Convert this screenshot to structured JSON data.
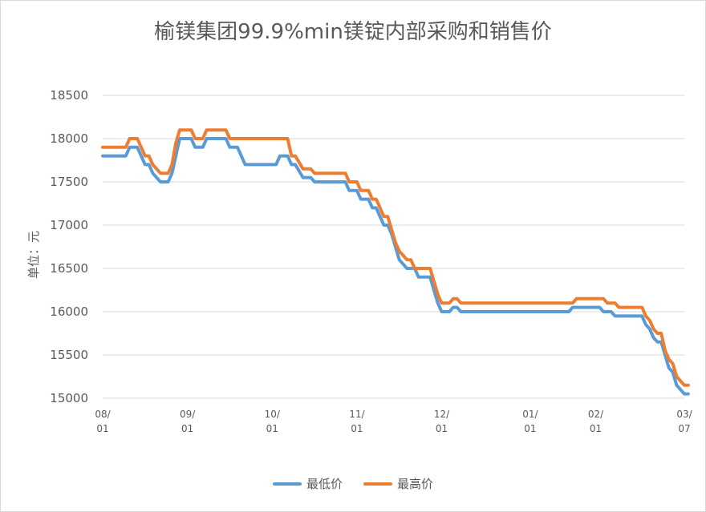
{
  "chart_data": {
    "type": "line",
    "title": "榆镁集团99.9%min镁锭内部采购和销售价",
    "xlabel": "",
    "ylabel": "单位：元",
    "ylim": [
      15000,
      18500
    ],
    "yticks": [
      15000,
      15500,
      16000,
      16500,
      17000,
      17500,
      18000,
      18500
    ],
    "grid": true,
    "legend_position": "bottom",
    "x_ticks": [
      {
        "top": "08/",
        "bottom": "01",
        "i": 0
      },
      {
        "top": "09/",
        "bottom": "01",
        "i": 22
      },
      {
        "top": "10/",
        "bottom": "01",
        "i": 44
      },
      {
        "top": "11/",
        "bottom": "01",
        "i": 66
      },
      {
        "top": "12/",
        "bottom": "01",
        "i": 88
      },
      {
        "top": "01/",
        "bottom": "01",
        "i": 111
      },
      {
        "top": "02/",
        "bottom": "01",
        "i": 128
      },
      {
        "top": "03/",
        "bottom": "07",
        "i": 151
      }
    ],
    "x_count": 152,
    "series": [
      {
        "name": "最低价",
        "color": "#5b9bd5",
        "points": [
          [
            0,
            17800
          ],
          [
            6,
            17800
          ],
          [
            7,
            17900
          ],
          [
            9,
            17900
          ],
          [
            11,
            17700
          ],
          [
            12,
            17700
          ],
          [
            13,
            17600
          ],
          [
            15,
            17500
          ],
          [
            17,
            17500
          ],
          [
            18,
            17600
          ],
          [
            19,
            17800
          ],
          [
            20,
            18000
          ],
          [
            23,
            18000
          ],
          [
            24,
            17900
          ],
          [
            26,
            17900
          ],
          [
            27,
            18000
          ],
          [
            32,
            18000
          ],
          [
            33,
            17900
          ],
          [
            35,
            17900
          ],
          [
            37,
            17700
          ],
          [
            45,
            17700
          ],
          [
            46,
            17800
          ],
          [
            48,
            17800
          ],
          [
            49,
            17700
          ],
          [
            50,
            17700
          ],
          [
            52,
            17550
          ],
          [
            54,
            17550
          ],
          [
            55,
            17500
          ],
          [
            63,
            17500
          ],
          [
            64,
            17400
          ],
          [
            66,
            17400
          ],
          [
            67,
            17300
          ],
          [
            69,
            17300
          ],
          [
            70,
            17200
          ],
          [
            71,
            17200
          ],
          [
            72,
            17100
          ],
          [
            73,
            17000
          ],
          [
            74,
            17000
          ],
          [
            75,
            16900
          ],
          [
            76,
            16750
          ],
          [
            77,
            16600
          ],
          [
            79,
            16500
          ],
          [
            81,
            16500
          ],
          [
            82,
            16400
          ],
          [
            85,
            16400
          ],
          [
            86,
            16250
          ],
          [
            87,
            16100
          ],
          [
            88,
            16000
          ],
          [
            90,
            16000
          ],
          [
            91,
            16050
          ],
          [
            92,
            16050
          ],
          [
            93,
            16000
          ],
          [
            121,
            16000
          ],
          [
            122,
            16050
          ],
          [
            129,
            16050
          ],
          [
            130,
            16000
          ],
          [
            132,
            16000
          ],
          [
            133,
            15950
          ],
          [
            140,
            15950
          ],
          [
            141,
            15850
          ],
          [
            142,
            15800
          ],
          [
            143,
            15700
          ],
          [
            144,
            15650
          ],
          [
            145,
            15650
          ],
          [
            146,
            15500
          ],
          [
            147,
            15350
          ],
          [
            148,
            15300
          ],
          [
            149,
            15150
          ],
          [
            150,
            15100
          ],
          [
            151,
            15050
          ],
          [
            152,
            15050
          ]
        ]
      },
      {
        "name": "最高价",
        "color": "#ed7d31",
        "points": [
          [
            0,
            17900
          ],
          [
            6,
            17900
          ],
          [
            7,
            18000
          ],
          [
            9,
            18000
          ],
          [
            11,
            17800
          ],
          [
            12,
            17800
          ],
          [
            13,
            17700
          ],
          [
            15,
            17600
          ],
          [
            17,
            17600
          ],
          [
            18,
            17700
          ],
          [
            19,
            17950
          ],
          [
            20,
            18100
          ],
          [
            23,
            18100
          ],
          [
            24,
            18000
          ],
          [
            26,
            18000
          ],
          [
            27,
            18100
          ],
          [
            32,
            18100
          ],
          [
            33,
            18000
          ],
          [
            48,
            18000
          ],
          [
            49,
            17800
          ],
          [
            50,
            17800
          ],
          [
            52,
            17650
          ],
          [
            54,
            17650
          ],
          [
            55,
            17600
          ],
          [
            63,
            17600
          ],
          [
            64,
            17500
          ],
          [
            66,
            17500
          ],
          [
            67,
            17400
          ],
          [
            69,
            17400
          ],
          [
            70,
            17300
          ],
          [
            71,
            17300
          ],
          [
            72,
            17200
          ],
          [
            73,
            17100
          ],
          [
            74,
            17100
          ],
          [
            75,
            16950
          ],
          [
            76,
            16800
          ],
          [
            77,
            16700
          ],
          [
            79,
            16600
          ],
          [
            80,
            16600
          ],
          [
            81,
            16500
          ],
          [
            85,
            16500
          ],
          [
            86,
            16350
          ],
          [
            87,
            16200
          ],
          [
            88,
            16100
          ],
          [
            90,
            16100
          ],
          [
            91,
            16150
          ],
          [
            92,
            16150
          ],
          [
            93,
            16100
          ],
          [
            122,
            16100
          ],
          [
            123,
            16150
          ],
          [
            130,
            16150
          ],
          [
            131,
            16100
          ],
          [
            133,
            16100
          ],
          [
            134,
            16050
          ],
          [
            140,
            16050
          ],
          [
            141,
            15950
          ],
          [
            142,
            15900
          ],
          [
            143,
            15800
          ],
          [
            144,
            15750
          ],
          [
            145,
            15750
          ],
          [
            146,
            15550
          ],
          [
            147,
            15450
          ],
          [
            148,
            15400
          ],
          [
            149,
            15250
          ],
          [
            150,
            15200
          ],
          [
            151,
            15150
          ],
          [
            152,
            15150
          ]
        ]
      }
    ]
  }
}
